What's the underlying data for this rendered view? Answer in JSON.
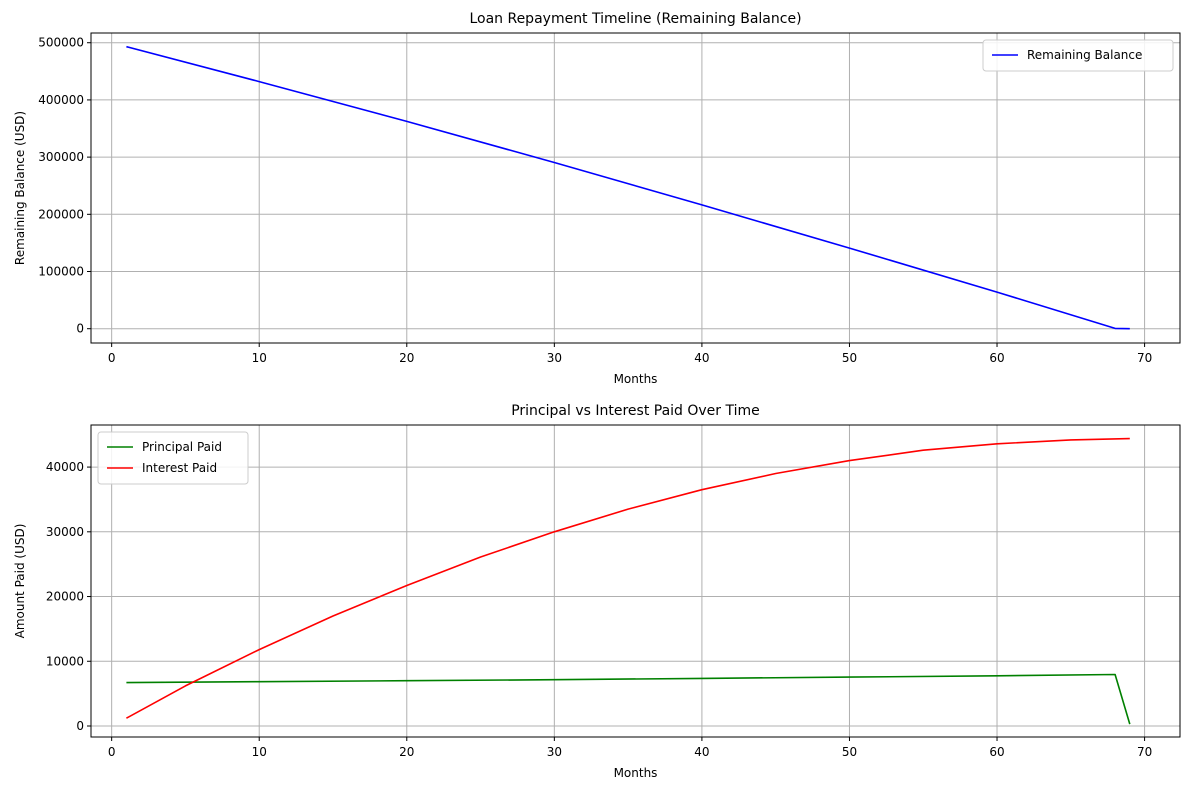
{
  "chart_data": [
    {
      "type": "line",
      "title": "Loan Repayment Timeline (Remaining Balance)",
      "xlabel": "Months",
      "ylabel": "Remaining Balance (USD)",
      "xlim": [
        -1.4,
        72.4
      ],
      "ylim": [
        -25000,
        517000
      ],
      "xticks": [
        0,
        10,
        20,
        30,
        40,
        50,
        60,
        70
      ],
      "yticks": [
        0,
        100000,
        200000,
        300000,
        400000,
        500000
      ],
      "grid": true,
      "legend_position": "upper right",
      "series": [
        {
          "name": "Remaining Balance",
          "color": "#0000ff",
          "points": [
            [
              1,
              493000
            ],
            [
              10,
              432000
            ],
            [
              20,
              362500
            ],
            [
              30,
              290500
            ],
            [
              40,
              216500
            ],
            [
              50,
              141000
            ],
            [
              60,
              64000
            ],
            [
              68,
              500
            ],
            [
              69,
              0
            ]
          ]
        }
      ]
    },
    {
      "type": "line",
      "title": "Principal vs Interest Paid Over Time",
      "xlabel": "Months",
      "ylabel": "Amount Paid (USD)",
      "xlim": [
        -1.4,
        72.4
      ],
      "ylim": [
        -1700,
        46500
      ],
      "xticks": [
        0,
        10,
        20,
        30,
        40,
        50,
        60,
        70
      ],
      "yticks": [
        0,
        10000,
        20000,
        30000,
        40000
      ],
      "grid": true,
      "legend_position": "upper left",
      "series": [
        {
          "name": "Principal Paid",
          "color": "#008000",
          "points": [
            [
              1,
              6700
            ],
            [
              10,
              6850
            ],
            [
              20,
              7000
            ],
            [
              30,
              7150
            ],
            [
              40,
              7350
            ],
            [
              50,
              7550
            ],
            [
              60,
              7750
            ],
            [
              68,
              7950
            ],
            [
              69,
              300
            ]
          ]
        },
        {
          "name": "Interest Paid",
          "color": "#ff0000",
          "points": [
            [
              1,
              1200
            ],
            [
              5,
              6200
            ],
            [
              10,
              11800
            ],
            [
              15,
              17000
            ],
            [
              20,
              21700
            ],
            [
              25,
              26100
            ],
            [
              30,
              30000
            ],
            [
              35,
              33500
            ],
            [
              40,
              36500
            ],
            [
              45,
              39000
            ],
            [
              50,
              41000
            ],
            [
              55,
              42600
            ],
            [
              60,
              43600
            ],
            [
              65,
              44200
            ],
            [
              69,
              44400
            ]
          ]
        }
      ]
    }
  ]
}
